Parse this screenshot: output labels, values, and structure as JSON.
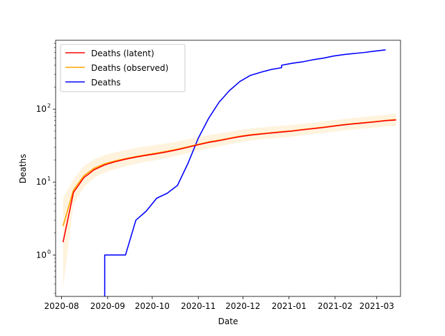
{
  "chart_data": {
    "type": "line",
    "xlabel": "Date",
    "ylabel": "Deaths",
    "yscale": "log",
    "ylim": [
      0.27,
      880
    ],
    "xlim": [
      "2020-07-28",
      "2021-03-17"
    ],
    "x_ticks": [
      "2020-08",
      "2020-09",
      "2020-10",
      "2020-11",
      "2020-12",
      "2021-01",
      "2021-02",
      "2021-03"
    ],
    "y_ticks": [
      {
        "value": 1,
        "label": "10",
        "exp": "0"
      },
      {
        "value": 10,
        "label": "10",
        "exp": "1"
      },
      {
        "value": 100,
        "label": "10",
        "exp": "2"
      }
    ],
    "legend_position": "top-left",
    "grid": false,
    "series": [
      {
        "name": "Deaths (latent)",
        "color": "#ff0000",
        "points": [
          [
            "2020-08-02",
            1.5
          ],
          [
            "2020-08-09",
            7.2
          ],
          [
            "2020-08-16",
            11.5
          ],
          [
            "2020-08-23",
            14.8
          ],
          [
            "2020-08-30",
            17.2
          ],
          [
            "2020-09-06",
            19.0
          ],
          [
            "2020-09-13",
            20.6
          ],
          [
            "2020-09-20",
            22.0
          ],
          [
            "2020-09-27",
            23.3
          ],
          [
            "2020-10-04",
            24.5
          ],
          [
            "2020-10-11",
            26.0
          ],
          [
            "2020-10-18",
            27.8
          ],
          [
            "2020-10-25",
            30.0
          ],
          [
            "2020-11-01",
            32.5
          ],
          [
            "2020-11-08",
            35.0
          ],
          [
            "2020-11-15",
            37.0
          ],
          [
            "2020-11-22",
            39.5
          ],
          [
            "2020-11-29",
            42.0
          ],
          [
            "2020-12-06",
            44.0
          ],
          [
            "2020-12-13",
            45.5
          ],
          [
            "2020-12-20",
            47.0
          ],
          [
            "2020-12-27",
            48.5
          ],
          [
            "2021-01-03",
            50.0
          ],
          [
            "2021-01-10",
            52.0
          ],
          [
            "2021-01-17",
            54.0
          ],
          [
            "2021-01-24",
            56.0
          ],
          [
            "2021-01-31",
            58.5
          ],
          [
            "2021-02-07",
            61.0
          ],
          [
            "2021-02-14",
            63.0
          ],
          [
            "2021-02-21",
            65.0
          ],
          [
            "2021-02-28",
            67.0
          ],
          [
            "2021-03-07",
            69.5
          ],
          [
            "2021-03-14",
            71.0
          ]
        ]
      },
      {
        "name": "Deaths (observed)",
        "color": "#ffa500",
        "band_color": "#ffa500",
        "points": [
          [
            "2020-08-02",
            2.5
          ],
          [
            "2020-08-09",
            7.8
          ],
          [
            "2020-08-16",
            12.2
          ],
          [
            "2020-08-23",
            15.5
          ],
          [
            "2020-08-30",
            17.8
          ],
          [
            "2020-09-06",
            19.5
          ],
          [
            "2020-09-13",
            21.0
          ],
          [
            "2020-09-20",
            22.4
          ],
          [
            "2020-09-27",
            23.7
          ],
          [
            "2020-10-04",
            25.0
          ],
          [
            "2020-10-11",
            26.5
          ],
          [
            "2020-10-18",
            28.3
          ],
          [
            "2020-10-25",
            30.5
          ],
          [
            "2020-11-01",
            33.0
          ],
          [
            "2020-11-08",
            35.5
          ],
          [
            "2020-11-15",
            37.5
          ],
          [
            "2020-11-22",
            40.0
          ],
          [
            "2020-11-29",
            42.5
          ],
          [
            "2020-12-06",
            44.5
          ],
          [
            "2020-12-13",
            46.0
          ],
          [
            "2020-12-20",
            47.5
          ],
          [
            "2020-12-27",
            49.0
          ],
          [
            "2021-01-03",
            50.5
          ],
          [
            "2021-01-10",
            52.5
          ],
          [
            "2021-01-17",
            54.5
          ],
          [
            "2021-01-24",
            56.5
          ],
          [
            "2021-01-31",
            59.0
          ],
          [
            "2021-02-07",
            61.5
          ],
          [
            "2021-02-14",
            63.5
          ],
          [
            "2021-02-21",
            65.5
          ],
          [
            "2021-02-28",
            67.5
          ],
          [
            "2021-03-07",
            70.0
          ],
          [
            "2021-03-14",
            72.0
          ]
        ],
        "band": [
          [
            "2020-08-02",
            0.35,
            6.0
          ],
          [
            "2020-08-09",
            5.0,
            11.0
          ],
          [
            "2020-08-16",
            8.5,
            16.5
          ],
          [
            "2020-08-23",
            11.5,
            20.5
          ],
          [
            "2020-08-30",
            13.5,
            23.5
          ],
          [
            "2020-09-06",
            15.0,
            25.5
          ],
          [
            "2020-09-13",
            16.5,
            27.5
          ],
          [
            "2020-09-20",
            17.8,
            29.5
          ],
          [
            "2020-09-27",
            19.0,
            31.0
          ],
          [
            "2020-10-04",
            20.0,
            32.5
          ],
          [
            "2020-10-11",
            21.5,
            34.0
          ],
          [
            "2020-10-18",
            23.0,
            36.0
          ],
          [
            "2020-10-25",
            25.0,
            38.5
          ],
          [
            "2020-11-01",
            27.0,
            41.5
          ],
          [
            "2020-11-08",
            29.0,
            44.0
          ],
          [
            "2020-11-15",
            31.0,
            46.5
          ],
          [
            "2020-11-22",
            33.0,
            49.0
          ],
          [
            "2020-11-29",
            35.0,
            52.0
          ],
          [
            "2020-12-06",
            37.0,
            54.0
          ],
          [
            "2020-12-13",
            38.5,
            56.0
          ],
          [
            "2020-12-20",
            39.5,
            57.5
          ],
          [
            "2020-12-27",
            41.0,
            59.0
          ],
          [
            "2021-01-03",
            42.0,
            61.0
          ],
          [
            "2021-01-10",
            44.0,
            63.0
          ],
          [
            "2021-01-17",
            45.5,
            65.0
          ],
          [
            "2021-01-24",
            47.0,
            68.0
          ],
          [
            "2021-01-31",
            49.0,
            70.5
          ],
          [
            "2021-02-07",
            51.0,
            73.5
          ],
          [
            "2021-02-14",
            53.0,
            76.0
          ],
          [
            "2021-02-21",
            54.5,
            78.5
          ],
          [
            "2021-02-28",
            56.0,
            81.0
          ],
          [
            "2021-03-07",
            58.0,
            84.0
          ],
          [
            "2021-03-14",
            59.0,
            87.0
          ]
        ]
      },
      {
        "name": "Deaths",
        "color": "#0000ff",
        "step": true,
        "points": [
          [
            "2020-08-30",
            0.1
          ],
          [
            "2020-08-30",
            1
          ],
          [
            "2020-09-13",
            1
          ],
          [
            "2020-09-20",
            3
          ],
          [
            "2020-09-27",
            4
          ],
          [
            "2020-10-04",
            6
          ],
          [
            "2020-10-11",
            7
          ],
          [
            "2020-10-18",
            9
          ],
          [
            "2020-10-25",
            18
          ],
          [
            "2020-11-01",
            40
          ],
          [
            "2020-11-08",
            75
          ],
          [
            "2020-11-15",
            125
          ],
          [
            "2020-11-22",
            180
          ],
          [
            "2020-11-29",
            240
          ],
          [
            "2020-12-06",
            290
          ],
          [
            "2020-12-13",
            320
          ],
          [
            "2020-12-20",
            350
          ],
          [
            "2020-12-27",
            370
          ],
          [
            "2020-12-27",
            400
          ],
          [
            "2021-01-03",
            425
          ],
          [
            "2021-01-10",
            445
          ],
          [
            "2021-01-17",
            475
          ],
          [
            "2021-01-24",
            500
          ],
          [
            "2021-01-31",
            535
          ],
          [
            "2021-02-07",
            560
          ],
          [
            "2021-02-14",
            580
          ],
          [
            "2021-02-21",
            600
          ],
          [
            "2021-02-28",
            625
          ],
          [
            "2021-03-07",
            650
          ]
        ]
      }
    ]
  }
}
